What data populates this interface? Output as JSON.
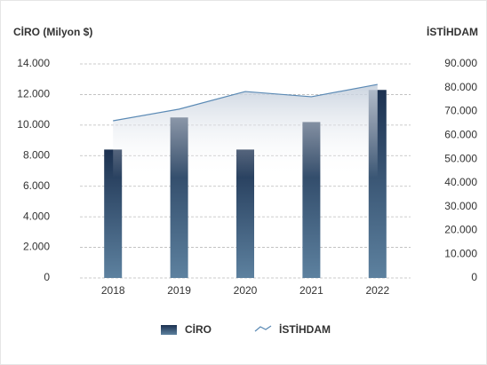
{
  "chart_data": {
    "type": "bar",
    "ylabel": "CİRO (Milyon $)",
    "y2label": "İSTİHDAM",
    "categories": [
      "2018",
      "2019",
      "2020",
      "2021",
      "2022"
    ],
    "series": [
      {
        "name": "CİRO",
        "type": "bar",
        "color": "#1c3150",
        "values": [
          8400,
          10500,
          8400,
          10200,
          12300
        ]
      },
      {
        "name": "İSTİHDAM",
        "type": "line",
        "axis": "y2",
        "color": "#5b8ab5",
        "values": [
          66100,
          71000,
          78400,
          76200,
          81400
        ]
      }
    ],
    "ylim": [
      0,
      14000
    ],
    "yticks": [
      0,
      {
        "value": 2000,
        "label": "2.000"
      },
      {
        "value": 4000,
        "label": "4.000"
      },
      {
        "value": 6000,
        "label": "6.000"
      },
      {
        "value": 8000,
        "label": "8.000"
      },
      {
        "value": 10000,
        "label": "10.000"
      },
      {
        "value": 12000,
        "label": "12.000"
      },
      {
        "value": 14000,
        "label": "14.000"
      }
    ],
    "y2lim": [
      0,
      90000
    ],
    "y2ticks": [
      0,
      {
        "value": 10000,
        "label": "10.000"
      },
      {
        "value": 20000,
        "label": "20.000"
      },
      {
        "value": 30000,
        "label": "30.000"
      },
      {
        "value": 40000,
        "label": "40.000"
      },
      {
        "value": 50000,
        "label": "50.000"
      },
      {
        "value": 60000,
        "label": "60.000"
      },
      {
        "value": 70000,
        "label": "70.000"
      },
      {
        "value": 80000,
        "label": "80.000"
      },
      {
        "value": 90000,
        "label": "90.000"
      }
    ],
    "grid": true
  }
}
